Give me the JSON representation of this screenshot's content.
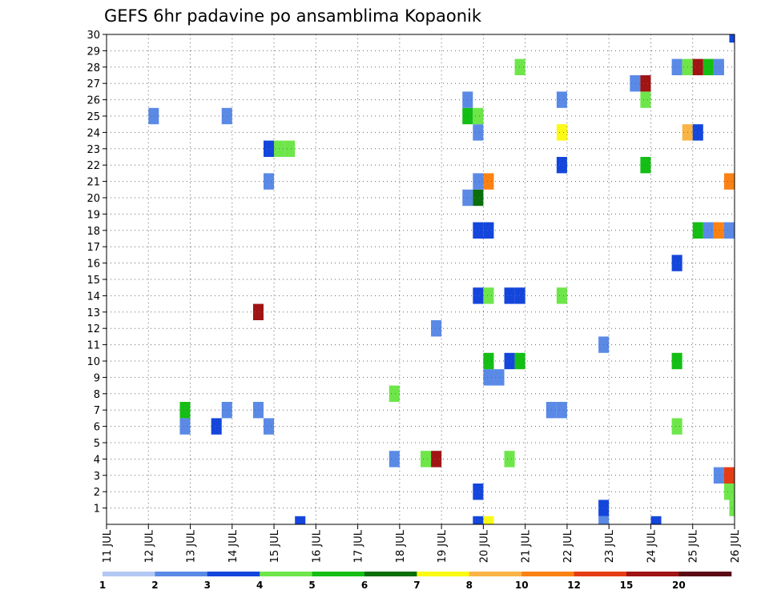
{
  "chart_data": {
    "type": "heatmap",
    "title": "GEFS 6hr padavine po ansamblima Kopaonik",
    "xlabel": "",
    "ylabel": "",
    "x_ticks": [
      "11 JUL",
      "12 JUL",
      "13 JUL",
      "14 JUL",
      "15 JUL",
      "16 JUL",
      "17 JUL",
      "18 JUL",
      "19 JUL",
      "20 JUL",
      "21 JUL",
      "22 JUL",
      "23 JUL",
      "24 JUL",
      "25 JUL",
      "26 JUL"
    ],
    "y_ticks": [
      "1",
      "2",
      "3",
      "4",
      "5",
      "6",
      "7",
      "8",
      "9",
      "10",
      "11",
      "12",
      "13",
      "14",
      "15",
      "16",
      "17",
      "18",
      "19",
      "20",
      "21",
      "22",
      "23",
      "24",
      "25",
      "26",
      "27",
      "28",
      "29",
      "30"
    ],
    "xlim": [
      0,
      60
    ],
    "ylim": [
      0,
      30
    ],
    "x_unit": "6-hour steps since 11 JUL 00Z",
    "grid": true,
    "colorbar": {
      "labels": [
        "1",
        "2",
        "3",
        "4",
        "5",
        "6",
        "7",
        "8",
        "10",
        "12",
        "15",
        "20"
      ],
      "colors": [
        "#b4c8f4",
        "#5a8ae6",
        "#1446dc",
        "#6ee64a",
        "#14be14",
        "#0a6e0a",
        "#fafa14",
        "#fab446",
        "#fa8214",
        "#e63c14",
        "#a01414",
        "#5a0a14"
      ]
    },
    "cells": [
      {
        "t": 18.5,
        "m": 0,
        "c": 2
      },
      {
        "t": 35.5,
        "m": 0,
        "c": 2
      },
      {
        "t": 36.5,
        "m": 0,
        "c": 6
      },
      {
        "t": 47.5,
        "m": 0,
        "c": 1
      },
      {
        "t": 52.5,
        "m": 0,
        "c": 2
      },
      {
        "t": 47.5,
        "m": 1,
        "c": 2
      },
      {
        "t": 35.5,
        "m": 2,
        "c": 2
      },
      {
        "t": 59.5,
        "m": 2,
        "c": 3
      },
      {
        "t": 58.5,
        "m": 3,
        "c": 1
      },
      {
        "t": 59.5,
        "m": 3,
        "c": 9
      },
      {
        "t": 27.5,
        "m": 4,
        "c": 1
      },
      {
        "t": 30.5,
        "m": 4,
        "c": 3
      },
      {
        "t": 31.5,
        "m": 4,
        "c": 10
      },
      {
        "t": 38.5,
        "m": 4,
        "c": 3
      },
      {
        "t": 7.5,
        "m": 6,
        "c": 1
      },
      {
        "t": 10.5,
        "m": 6,
        "c": 2
      },
      {
        "t": 15.5,
        "m": 6,
        "c": 1
      },
      {
        "t": 54.5,
        "m": 6,
        "c": 3
      },
      {
        "t": 7.5,
        "m": 7,
        "c": 4
      },
      {
        "t": 11.5,
        "m": 7,
        "c": 1
      },
      {
        "t": 14.5,
        "m": 7,
        "c": 1
      },
      {
        "t": 42.5,
        "m": 7,
        "c": 1
      },
      {
        "t": 43.5,
        "m": 7,
        "c": 1
      },
      {
        "t": 27.5,
        "m": 8,
        "c": 3
      },
      {
        "t": 36.5,
        "m": 9,
        "c": 1
      },
      {
        "t": 37.5,
        "m": 9,
        "c": 1
      },
      {
        "t": 36.5,
        "m": 10,
        "c": 4
      },
      {
        "t": 38.5,
        "m": 10,
        "c": 2
      },
      {
        "t": 39.5,
        "m": 10,
        "c": 4
      },
      {
        "t": 54.5,
        "m": 10,
        "c": 4
      },
      {
        "t": 47.5,
        "m": 11,
        "c": 1
      },
      {
        "t": 31.5,
        "m": 12,
        "c": 1
      },
      {
        "t": 14.5,
        "m": 13,
        "c": 10
      },
      {
        "t": 35.5,
        "m": 14,
        "c": 2
      },
      {
        "t": 36.5,
        "m": 14,
        "c": 3
      },
      {
        "t": 38.5,
        "m": 14,
        "c": 2
      },
      {
        "t": 39.5,
        "m": 14,
        "c": 2
      },
      {
        "t": 43.5,
        "m": 14,
        "c": 3
      },
      {
        "t": 54.5,
        "m": 16,
        "c": 2
      },
      {
        "t": 35.5,
        "m": 18,
        "c": 2
      },
      {
        "t": 36.5,
        "m": 18,
        "c": 2
      },
      {
        "t": 56.5,
        "m": 18,
        "c": 4
      },
      {
        "t": 57.5,
        "m": 18,
        "c": 1
      },
      {
        "t": 58.5,
        "m": 18,
        "c": 8
      },
      {
        "t": 59.5,
        "m": 18,
        "c": 1
      },
      {
        "t": 34.5,
        "m": 20,
        "c": 1
      },
      {
        "t": 35.5,
        "m": 20,
        "c": 5
      },
      {
        "t": 15.5,
        "m": 21,
        "c": 1
      },
      {
        "t": 35.5,
        "m": 21,
        "c": 1
      },
      {
        "t": 36.5,
        "m": 21,
        "c": 8
      },
      {
        "t": 59.5,
        "m": 21,
        "c": 8
      },
      {
        "t": 43.5,
        "m": 22,
        "c": 2
      },
      {
        "t": 51.5,
        "m": 22,
        "c": 4
      },
      {
        "t": 15.5,
        "m": 23,
        "c": 2
      },
      {
        "t": 16.5,
        "m": 23,
        "c": 3
      },
      {
        "t": 17.5,
        "m": 23,
        "c": 3
      },
      {
        "t": 35.5,
        "m": 24,
        "c": 1
      },
      {
        "t": 43.5,
        "m": 24,
        "c": 6
      },
      {
        "t": 55.5,
        "m": 24,
        "c": 7
      },
      {
        "t": 56.5,
        "m": 24,
        "c": 2
      },
      {
        "t": 4.5,
        "m": 25,
        "c": 1
      },
      {
        "t": 11.5,
        "m": 25,
        "c": 1
      },
      {
        "t": 34.5,
        "m": 25,
        "c": 4
      },
      {
        "t": 35.5,
        "m": 25,
        "c": 3
      },
      {
        "t": 34.5,
        "m": 26,
        "c": 1
      },
      {
        "t": 43.5,
        "m": 26,
        "c": 1
      },
      {
        "t": 51.5,
        "m": 26,
        "c": 3
      },
      {
        "t": 50.5,
        "m": 27,
        "c": 1
      },
      {
        "t": 51.5,
        "m": 27,
        "c": 10
      },
      {
        "t": 39.5,
        "m": 28,
        "c": 3
      },
      {
        "t": 54.5,
        "m": 28,
        "c": 1
      },
      {
        "t": 55.5,
        "m": 28,
        "c": 3
      },
      {
        "t": 56.5,
        "m": 28,
        "c": 10
      },
      {
        "t": 57.5,
        "m": 28,
        "c": 4
      },
      {
        "t": 58.5,
        "m": 28,
        "c": 1
      },
      {
        "t": 60,
        "m": 30,
        "c": 2
      },
      {
        "t": 60,
        "m": 1,
        "c": 3
      }
    ]
  }
}
